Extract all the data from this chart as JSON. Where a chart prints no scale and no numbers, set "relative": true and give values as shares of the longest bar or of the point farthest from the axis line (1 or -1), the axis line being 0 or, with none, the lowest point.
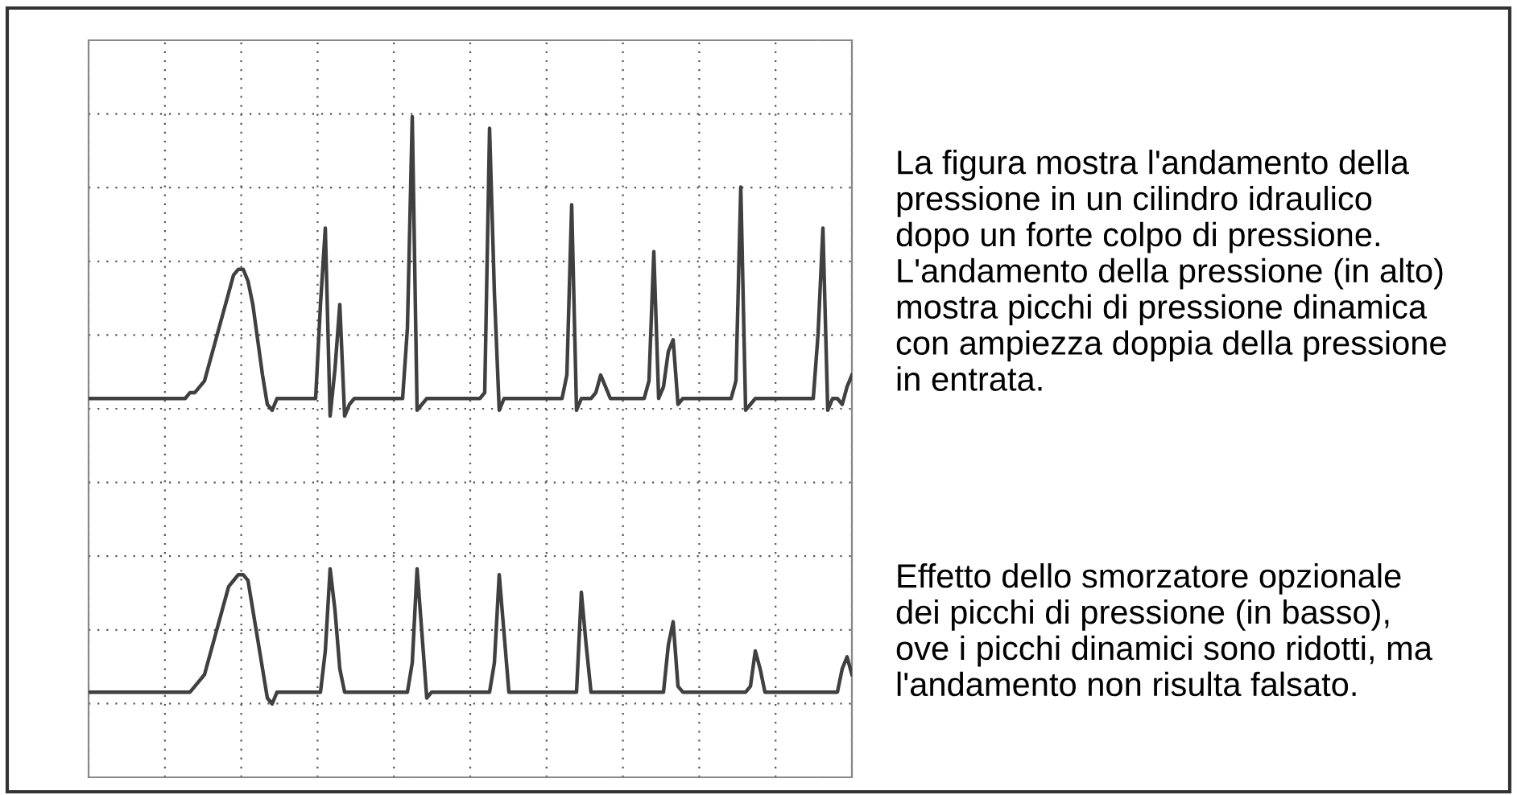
{
  "chart_data": {
    "type": "line",
    "relative": true,
    "grid": true,
    "categories": [
      null,
      null,
      null,
      null,
      null,
      null,
      null,
      null,
      null,
      null,
      null,
      null,
      null,
      null,
      null,
      null,
      null,
      null,
      null,
      null,
      null,
      null,
      null,
      null,
      null,
      null,
      null,
      null,
      null,
      null,
      null,
      null,
      null,
      null,
      null,
      null,
      null,
      null,
      null,
      null,
      null,
      null,
      null,
      null,
      null,
      null,
      null,
      null,
      null,
      null,
      null,
      null,
      null,
      null,
      null,
      null,
      null,
      null,
      null,
      null,
      null,
      null,
      null,
      null,
      null,
      null,
      null,
      null,
      null,
      null,
      null,
      null,
      null,
      null,
      null,
      null,
      null,
      null,
      null,
      null,
      null,
      null,
      null,
      null,
      null,
      null,
      null,
      null,
      null,
      null,
      null,
      null,
      null,
      null,
      null,
      null,
      null,
      null,
      null,
      null,
      null,
      null,
      null,
      null,
      null,
      null,
      null,
      null,
      null,
      null,
      null,
      null,
      null,
      null,
      null,
      null,
      null,
      null,
      null,
      null,
      null,
      null,
      null,
      null,
      null,
      null,
      null,
      null,
      null,
      null,
      null,
      null,
      null,
      null,
      null,
      null,
      null,
      null,
      null,
      null,
      null,
      null,
      null,
      null,
      null,
      null,
      null,
      null,
      null,
      null,
      null,
      null,
      null,
      null,
      null,
      null,
      null,
      null,
      null
    ],
    "series": [
      {
        "color": "#404040",
        "values": [
          0.52,
          0.52,
          0.52,
          0.52,
          0.52,
          0.52,
          0.52,
          0.52,
          0.52,
          0.52,
          0.52,
          0.52,
          0.52,
          0.52,
          0.52,
          0.52,
          0.52,
          0.52,
          0.52,
          0.52,
          0.52,
          0.53,
          0.53,
          0.54,
          0.55,
          0.58,
          0.61,
          0.64,
          0.67,
          0.7,
          0.73,
          0.74,
          0.74,
          0.72,
          0.68,
          0.62,
          0.56,
          0.51,
          0.5,
          0.52,
          0.52,
          0.52,
          0.52,
          0.52,
          0.52,
          0.52,
          0.52,
          0.52,
          0.68,
          0.81,
          0.49,
          0.57,
          0.68,
          0.49,
          0.51,
          0.52,
          0.52,
          0.52,
          0.52,
          0.52,
          0.52,
          0.52,
          0.52,
          0.52,
          0.52,
          0.52,
          0.64,
          1.0,
          0.5,
          0.51,
          0.52,
          0.52,
          0.52,
          0.52,
          0.52,
          0.52,
          0.52,
          0.52,
          0.52,
          0.52,
          0.52,
          0.52,
          0.53,
          0.98,
          0.7,
          0.5,
          0.52,
          0.52,
          0.52,
          0.52,
          0.52,
          0.52,
          0.52,
          0.52,
          0.52,
          0.52,
          0.52,
          0.52,
          0.52,
          0.56,
          0.85,
          0.5,
          0.52,
          0.52,
          0.52,
          0.53,
          0.56,
          0.54,
          0.52,
          0.52,
          0.52,
          0.52,
          0.52,
          0.52,
          0.52,
          0.52,
          0.55,
          0.77,
          0.52,
          0.54,
          0.6,
          0.62,
          0.51,
          0.52,
          0.52,
          0.52,
          0.52,
          0.52,
          0.52,
          0.52,
          0.52,
          0.52,
          0.52,
          0.52,
          0.55,
          0.88,
          0.5,
          0.51,
          0.52,
          0.52,
          0.52,
          0.52,
          0.52,
          0.52,
          0.52,
          0.52,
          0.52,
          0.52,
          0.52,
          0.52,
          0.52,
          0.63,
          0.81,
          0.5,
          0.52,
          0.52,
          0.51,
          0.54,
          0.56
        ]
      },
      {
        "color": "#404040",
        "values": [
          0.02,
          0.02,
          0.02,
          0.02,
          0.02,
          0.02,
          0.02,
          0.02,
          0.02,
          0.02,
          0.02,
          0.02,
          0.02,
          0.02,
          0.02,
          0.02,
          0.02,
          0.02,
          0.02,
          0.02,
          0.02,
          0.02,
          0.03,
          0.04,
          0.05,
          0.08,
          0.11,
          0.14,
          0.17,
          0.2,
          0.21,
          0.22,
          0.22,
          0.21,
          0.16,
          0.11,
          0.06,
          0.01,
          0.0,
          0.02,
          0.02,
          0.02,
          0.02,
          0.02,
          0.02,
          0.02,
          0.02,
          0.02,
          0.02,
          0.09,
          0.23,
          0.16,
          0.06,
          0.02,
          0.02,
          0.02,
          0.02,
          0.02,
          0.02,
          0.02,
          0.02,
          0.02,
          0.02,
          0.02,
          0.02,
          0.02,
          0.02,
          0.07,
          0.23,
          0.12,
          0.01,
          0.02,
          0.02,
          0.02,
          0.02,
          0.02,
          0.02,
          0.02,
          0.02,
          0.02,
          0.02,
          0.02,
          0.02,
          0.02,
          0.07,
          0.22,
          0.12,
          0.02,
          0.02,
          0.02,
          0.02,
          0.02,
          0.02,
          0.02,
          0.02,
          0.02,
          0.02,
          0.02,
          0.02,
          0.02,
          0.02,
          0.02,
          0.19,
          0.1,
          0.02,
          0.02,
          0.02,
          0.02,
          0.02,
          0.02,
          0.02,
          0.02,
          0.02,
          0.02,
          0.02,
          0.02,
          0.02,
          0.02,
          0.02,
          0.02,
          0.1,
          0.14,
          0.03,
          0.02,
          0.02,
          0.02,
          0.02,
          0.02,
          0.02,
          0.02,
          0.02,
          0.02,
          0.02,
          0.02,
          0.02,
          0.02,
          0.02,
          0.03,
          0.09,
          0.06,
          0.02,
          0.02,
          0.02,
          0.02,
          0.02,
          0.02,
          0.02,
          0.02,
          0.02,
          0.02,
          0.02,
          0.02,
          0.02,
          0.02,
          0.02,
          0.02,
          0.06,
          0.08,
          0.05
        ]
      }
    ],
    "annotations": [
      "La figura mostra l'andamento della\npressione in un cilindro idraulico\ndopo un forte colpo di pressione.\nL'andamento della pressione (in alto)\nmostra picchi di pressione dinamica\ncon ampiezza doppia della pressione\nin entrata.",
      "Effetto dello smorzatore opzionale\ndei picchi di pressione (in basso),\nove i picchi dinamici sono ridotti, ma\nl'andamento non risulta falsato."
    ]
  }
}
